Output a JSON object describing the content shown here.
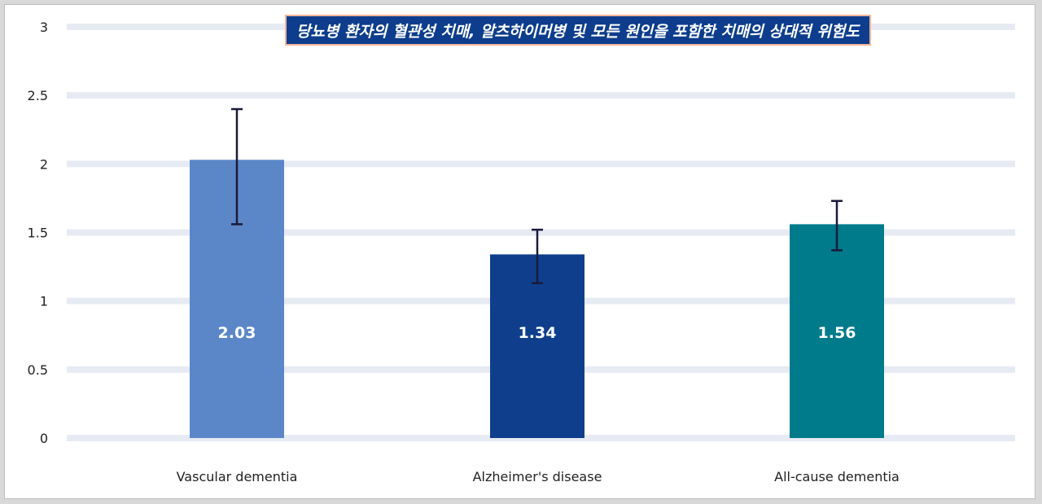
{
  "chart_data": {
    "type": "bar",
    "title": "당뇨병 환자의 혈관성 치매, 알츠하이머병 및 모든 원인을 포함한 치매의 상대적 위험도",
    "categories": [
      "Vascular dementia",
      "Alzheimer's disease",
      "All-cause dementia"
    ],
    "values": [
      2.03,
      1.34,
      1.56
    ],
    "value_labels": [
      "2.03",
      "1.34",
      "1.56"
    ],
    "error_low": [
      1.56,
      1.13,
      1.37
    ],
    "error_high": [
      2.4,
      1.52,
      1.73
    ],
    "bar_colors": [
      "#5b87c9",
      "#0f3f8c",
      "#007b8c"
    ],
    "error_bar_color": "#1a1a3a",
    "gridline_color": "#e6ebf3",
    "ylim": [
      0,
      3
    ],
    "yticks": [
      "0",
      "0.5",
      "1",
      "1.5",
      "2",
      "2.5",
      "3"
    ],
    "grid": true,
    "legend": "none"
  },
  "colors": {
    "title_bg": "#0d3d8c",
    "title_border": "#f2b59a"
  }
}
